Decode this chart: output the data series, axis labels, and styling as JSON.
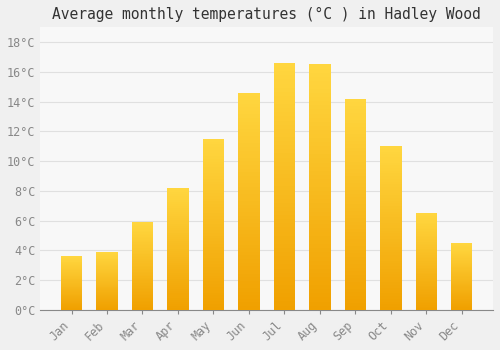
{
  "title": "Average monthly temperatures (°C ) in Hadley Wood",
  "months": [
    "Jan",
    "Feb",
    "Mar",
    "Apr",
    "May",
    "Jun",
    "Jul",
    "Aug",
    "Sep",
    "Oct",
    "Nov",
    "Dec"
  ],
  "values": [
    3.6,
    3.9,
    5.9,
    8.2,
    11.5,
    14.6,
    16.6,
    16.5,
    14.2,
    11.0,
    6.5,
    4.5
  ],
  "bar_color_bottom": "#F0A000",
  "bar_color_top": "#FFD740",
  "background_color": "#F0F0F0",
  "plot_bg_color": "#F8F8F8",
  "grid_color": "#E0E0E0",
  "ylim": [
    0,
    19
  ],
  "yticks": [
    0,
    2,
    4,
    6,
    8,
    10,
    12,
    14,
    16,
    18
  ],
  "ytick_labels": [
    "0°C",
    "2°C",
    "4°C",
    "6°C",
    "8°C",
    "10°C",
    "12°C",
    "14°C",
    "16°C",
    "18°C"
  ],
  "title_fontsize": 10.5,
  "tick_fontsize": 8.5,
  "tick_color": "#888888",
  "axis_color": "#888888",
  "bar_width": 0.6
}
